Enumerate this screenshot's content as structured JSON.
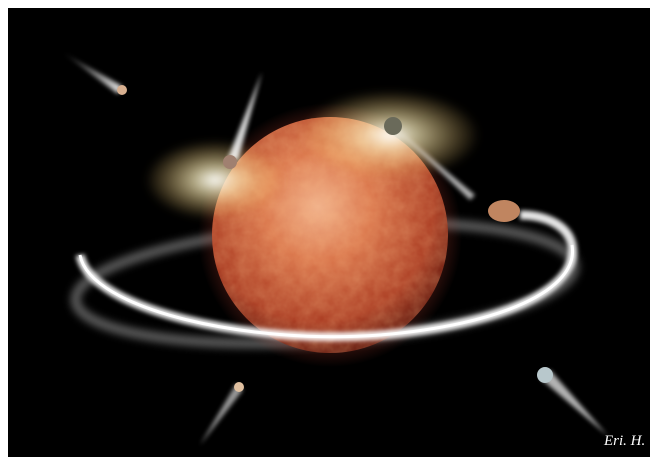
{
  "signature": "Eri. H."
}
